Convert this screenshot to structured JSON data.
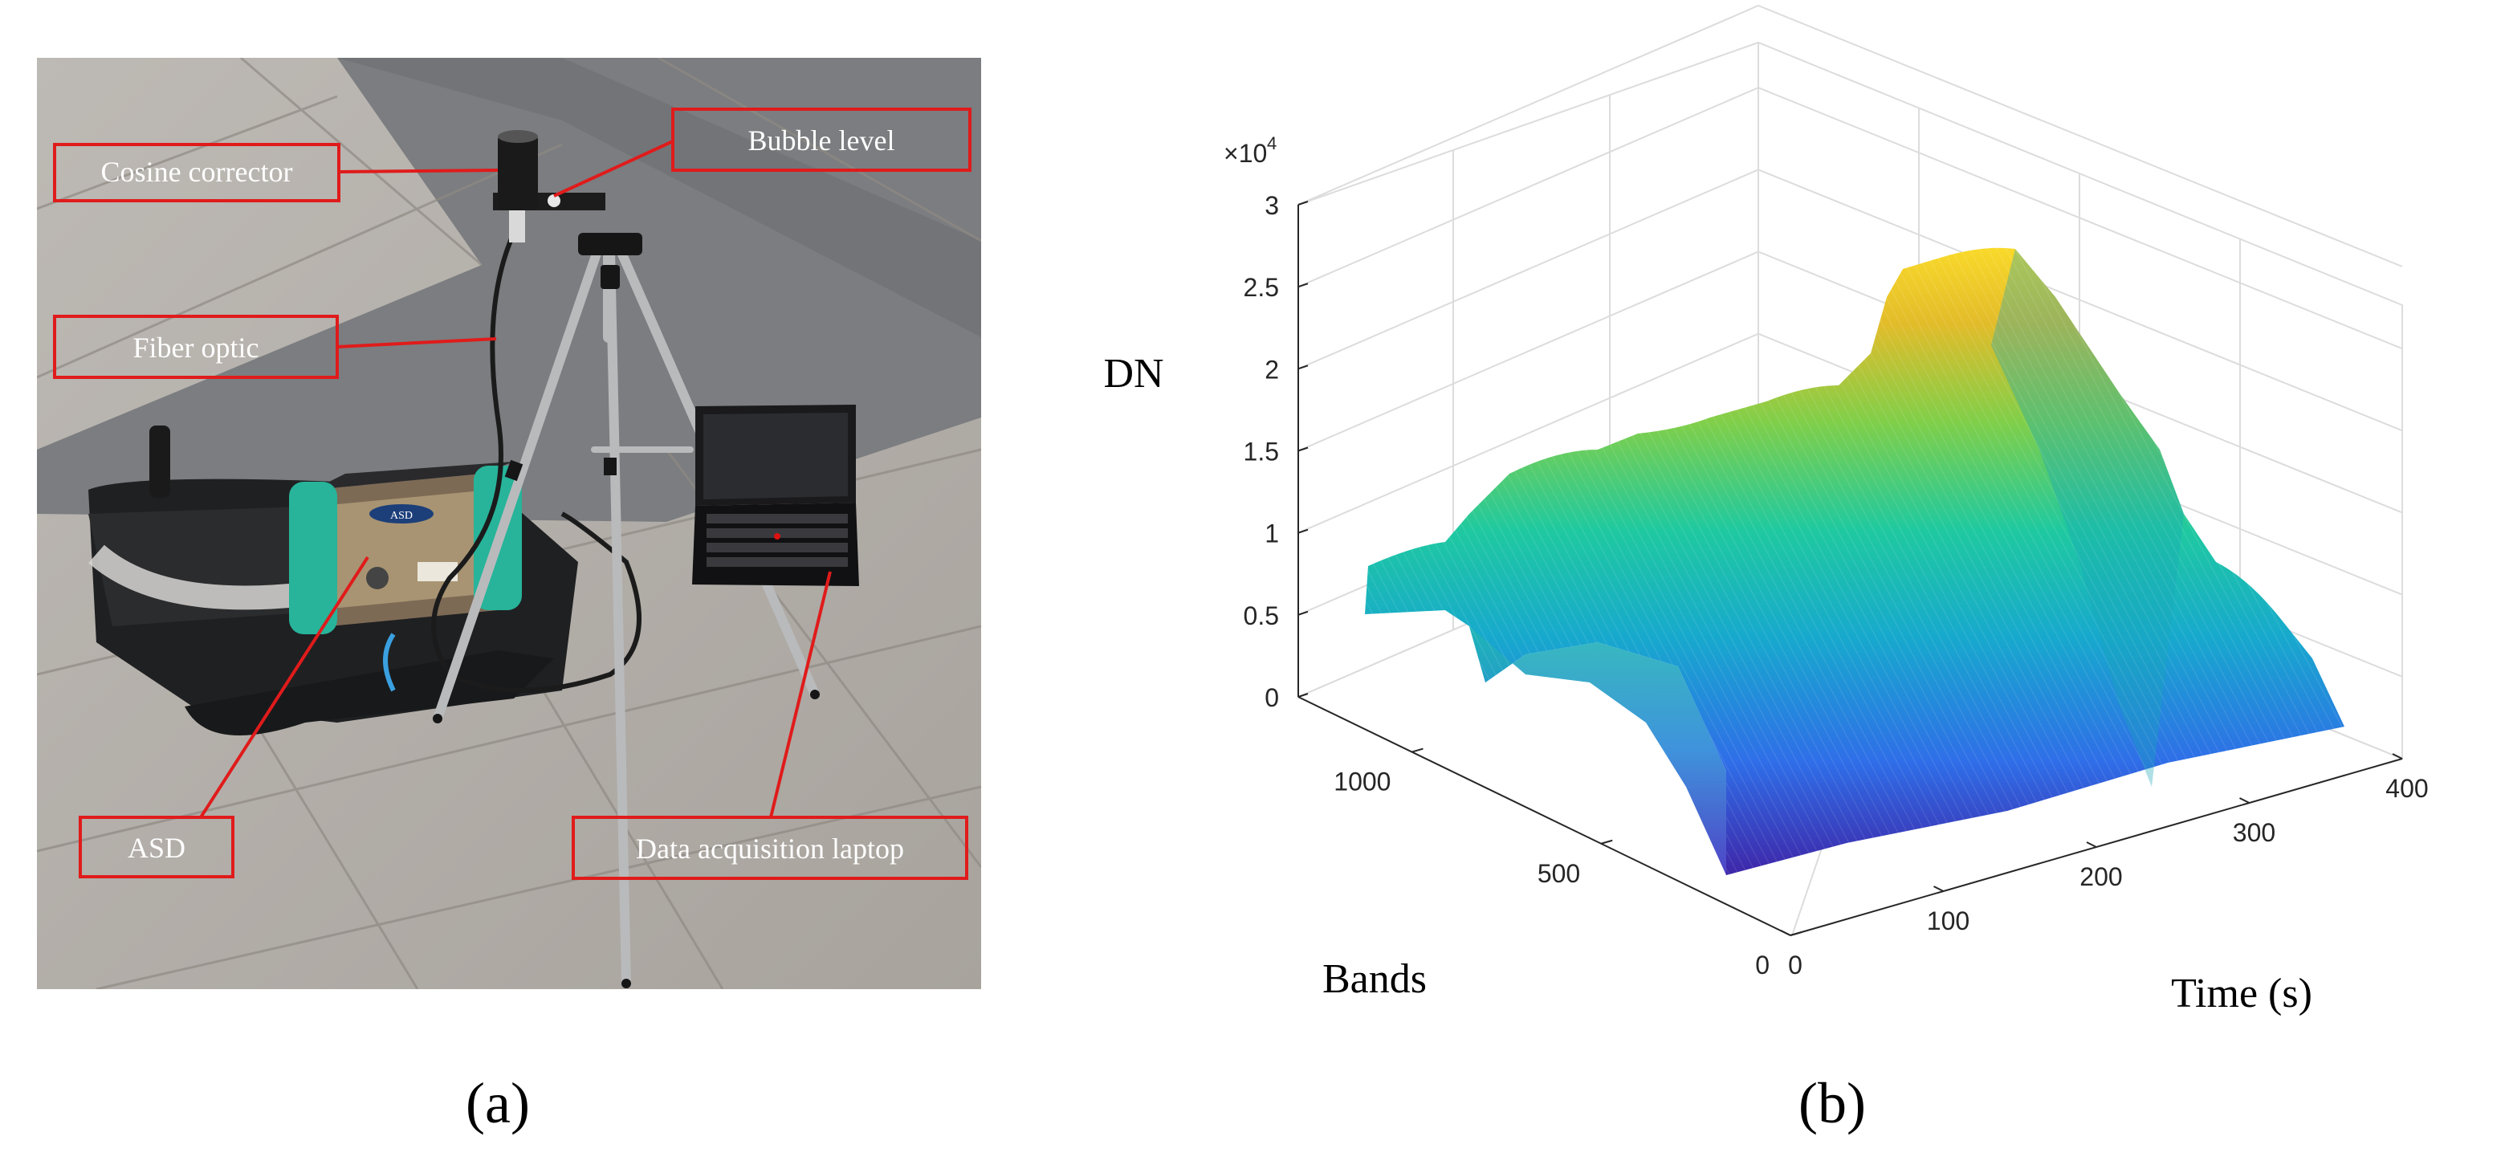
{
  "panel_a": {
    "caption": "(a)",
    "photo_description_name": "field-spectrometer-setup-photo",
    "labels": {
      "cosine_corrector": "Cosine corrector",
      "bubble_level": "Bubble level",
      "fiber_optic": "Fiber optic",
      "asd": "ASD",
      "laptop": "Data acquisition laptop"
    },
    "device_logo_text": "ASD",
    "colors": {
      "label_box": "#e01b1b",
      "label_text": "#ffffff",
      "pavement_light": "#b6b2ad",
      "pavement_dark": "#7d7e7f",
      "instrument_teal": "#27b49a"
    }
  },
  "panel_b": {
    "caption": "(b)",
    "chart_data": {
      "type": "surface",
      "title": "",
      "zlabel": "DN",
      "xlabel": "Time (s)",
      "ylabel": "Bands",
      "z_exponent_label": "×10",
      "z_exponent_power": "4",
      "z_ticks": [
        "0",
        "0.5",
        "1",
        "1.5",
        "2",
        "2.5",
        "3"
      ],
      "x_ticks": [
        "0",
        "100",
        "200",
        "300",
        "400"
      ],
      "y_ticks": [
        "0",
        "500",
        "1000"
      ],
      "xlim": [
        0,
        400
      ],
      "ylim": [
        0,
        1300
      ],
      "zlim": [
        0,
        30000
      ],
      "grid": true,
      "colormap": "parula",
      "colormap_colors": [
        "#3e26a8",
        "#2f6ee8",
        "#17a9cd",
        "#1fc9a0",
        "#7fcf4a",
        "#e3bc2a",
        "#f9d92a"
      ],
      "ridge_profile_samples": [
        {
          "time_s": 0,
          "dn_peak": 5000
        },
        {
          "time_s": 40,
          "dn_peak": 13000
        },
        {
          "time_s": 100,
          "dn_peak": 16000
        },
        {
          "time_s": 160,
          "dn_peak": 15500
        },
        {
          "time_s": 210,
          "dn_peak": 22000
        },
        {
          "time_s": 250,
          "dn_peak": 26500
        },
        {
          "time_s": 290,
          "dn_peak": 19000
        },
        {
          "time_s": 340,
          "dn_peak": 9000
        },
        {
          "time_s": 400,
          "dn_peak": 1000
        }
      ]
    }
  }
}
